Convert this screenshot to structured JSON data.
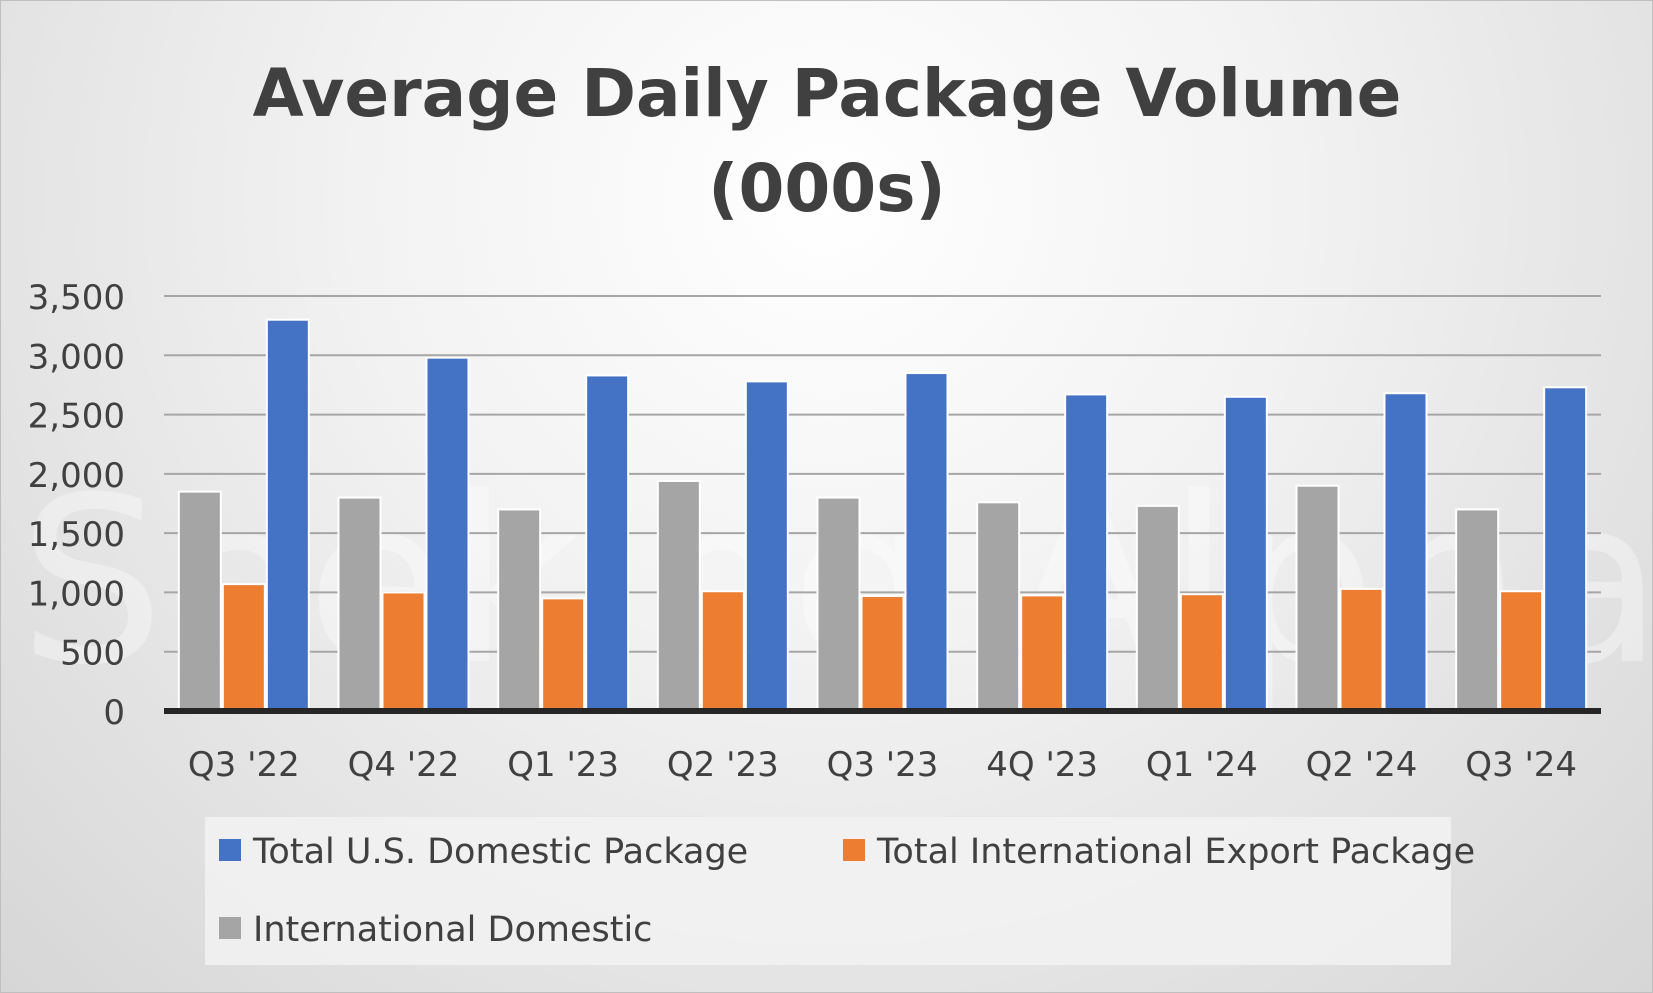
{
  "watermark": "Seeking Alpha",
  "chart_data": {
    "type": "bar",
    "title_lines": [
      "Average Daily Package Volume",
      "(000s)"
    ],
    "categories": [
      "Q3 '22",
      "Q4 '22",
      "Q1 '23",
      "Q2 '23",
      "Q3 '23",
      "4Q '23",
      "Q1 '24",
      "Q2 '24",
      "Q3 '24"
    ],
    "series": [
      {
        "name": "International Domestic",
        "color": "#a5a5a5",
        "values": [
          1850,
          1800,
          1700,
          1940,
          1800,
          1760,
          1730,
          1900,
          1700
        ]
      },
      {
        "name": "Total International Export Package",
        "color": "#ed7d31",
        "values": [
          1070,
          1000,
          950,
          1010,
          970,
          975,
          985,
          1030,
          1010
        ]
      },
      {
        "name": "Total U.S. Domestic Package",
        "color": "#4472c4",
        "values": [
          3300,
          2980,
          2830,
          2780,
          2850,
          2670,
          2650,
          2680,
          2730
        ]
      }
    ],
    "ylim": [
      0,
      3500
    ],
    "yticks": [
      0,
      500,
      1000,
      1500,
      2000,
      2500,
      3000,
      3500
    ],
    "ytick_labels": [
      "0",
      "500",
      "1,000",
      "1,500",
      "2,000",
      "2,500",
      "3,000",
      "3,500"
    ],
    "grid": true,
    "legend": {
      "placement": "bottom",
      "order": [
        "Total U.S. Domestic Package",
        "Total International Export Package",
        "International Domestic"
      ]
    }
  }
}
